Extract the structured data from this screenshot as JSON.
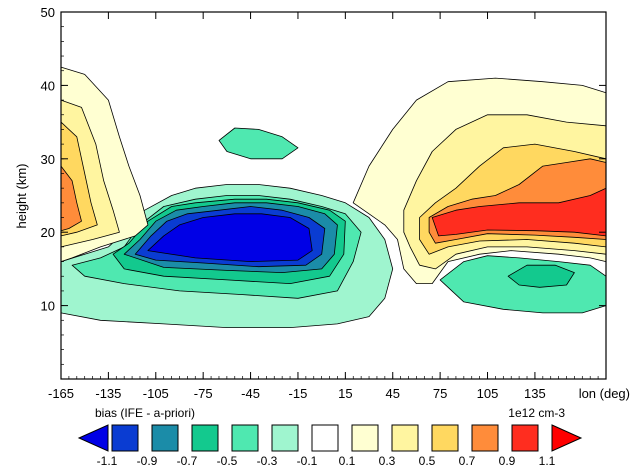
{
  "chart_data": {
    "type": "contour",
    "ylabel": "height (km)",
    "xlabel": "lon (deg)",
    "xlim": [
      -165,
      180
    ],
    "ylim": [
      0,
      50
    ],
    "x_ticks": [
      -165,
      -135,
      -105,
      -75,
      -45,
      -15,
      15,
      45,
      75,
      105,
      135
    ],
    "y_ticks": [
      10,
      20,
      30,
      40,
      50
    ],
    "grid": false,
    "colorbar": {
      "title": "bias (IFE - a-priori)",
      "units": "1e12 cm-3",
      "levels": [
        -1.1,
        -0.9,
        -0.7,
        -0.5,
        -0.3,
        -0.1,
        0.1,
        0.3,
        0.5,
        0.7,
        0.9,
        1.1
      ],
      "level_labels": [
        "-1.1",
        "-0.9",
        "-0.7",
        "-0.5",
        "-0.3",
        "-0.1",
        "0.1",
        "0.3",
        "0.5",
        "0.7",
        "0.9",
        "1.1"
      ],
      "colors": [
        "#0000e6",
        "#0a3cd2",
        "#1b8ca8",
        "#13c98e",
        "#4fe8b0",
        "#9ff5cf",
        "#ffffff",
        "#ffffd2",
        "#fff5a0",
        "#ffd860",
        "#ff8c3a",
        "#ff2d1f",
        "#ff0000"
      ]
    },
    "regions": [
      {
        "name": "negative blob",
        "center_lon": -45,
        "center_height": 19,
        "min_level": -1.1
      },
      {
        "name": "positive blob east",
        "center_lon": 150,
        "center_height": 21,
        "max_level": 1.1
      },
      {
        "name": "positive blob west",
        "center_lon": -165,
        "center_height": 23,
        "max_level": 0.9
      }
    ]
  }
}
